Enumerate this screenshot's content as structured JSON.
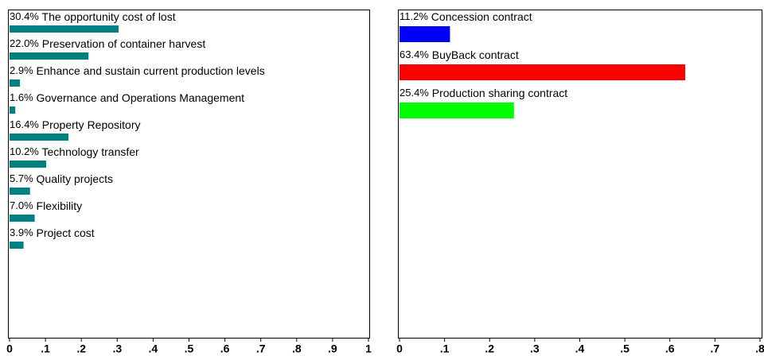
{
  "chart_data": [
    {
      "type": "bar",
      "orientation": "horizontal",
      "color": "#008080",
      "categories": [
        "The opportunity cost of lost",
        "Preservation of container harvest",
        "Enhance and sustain current production levels",
        "Governance and Operations Management",
        "Property Repository",
        "Technology transfer",
        "Quality projects",
        "Flexibility",
        "Project cost"
      ],
      "values": [
        0.304,
        0.22,
        0.029,
        0.016,
        0.164,
        0.102,
        0.057,
        0.07,
        0.039
      ],
      "value_labels": [
        "30.4%",
        "22.0%",
        "2.9%",
        "1.6%",
        "16.4%",
        "10.2%",
        "5.7%",
        "7.0%",
        "3.9%"
      ],
      "xlim": [
        0,
        1
      ],
      "xticks": [
        0,
        {
          "value": 0.1,
          "label": ".1"
        },
        {
          "value": 0.2,
          "label": ".2"
        },
        {
          "value": 0.3,
          "label": ".3"
        },
        {
          "value": 0.4,
          "label": ".4"
        },
        {
          "value": 0.5,
          "label": ".5"
        },
        {
          "value": 0.6,
          "label": ".6"
        },
        {
          "value": 0.7,
          "label": ".7"
        },
        {
          "value": 0.8,
          "label": ".8"
        },
        {
          "value": 0.9,
          "label": ".9"
        },
        1
      ]
    },
    {
      "type": "bar",
      "orientation": "horizontal",
      "colors": [
        "#0000ff",
        "#ff0000",
        "#00ff00"
      ],
      "categories": [
        "Concession contract",
        "BuyBack contract",
        "Production sharing contract"
      ],
      "values": [
        0.112,
        0.634,
        0.254
      ],
      "value_labels": [
        "11.2%",
        "63.4%",
        "25.4%"
      ],
      "xlim": [
        0,
        0.8
      ],
      "xticks": [
        0,
        {
          "value": 0.1,
          "label": ".1"
        },
        {
          "value": 0.2,
          "label": ".2"
        },
        {
          "value": 0.3,
          "label": ".3"
        },
        {
          "value": 0.4,
          "label": ".4"
        },
        {
          "value": 0.5,
          "label": ".5"
        },
        {
          "value": 0.6,
          "label": ".6"
        },
        {
          "value": 0.7,
          "label": ".7"
        },
        {
          "value": 0.8,
          "label": ".8"
        }
      ]
    }
  ]
}
